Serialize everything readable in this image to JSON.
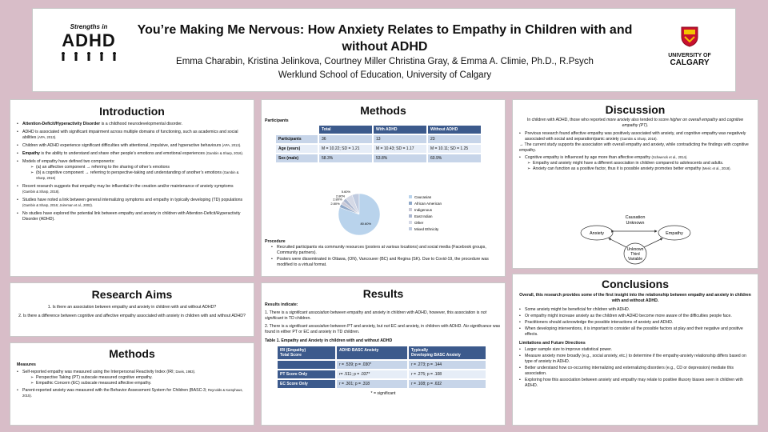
{
  "header": {
    "title": "You’re Making Me Nervous: How Anxiety Relates to Empathy in Children with and without ADHD",
    "authors": "Emma Charabin, Kristina Jelinkova, Courtney Miller Christina Gray, & Emma A. Climie, Ph.D., R.Psych",
    "affiliation": "Werklund School of Education, University of Calgary",
    "logo_left_top": "Strengths in",
    "logo_left_main": "ADHD",
    "logo_right_line1": "UNIVERSITY OF",
    "logo_right_line2": "CALGARY"
  },
  "introduction": {
    "title": "Introduction",
    "items": [
      {
        "bold": "Attention-Deficit/Hyperactivity Disorder",
        "text": " is a childhood neurodevelopmental disorder."
      },
      {
        "bold": "",
        "text": "ADHD is associated with significant impairment across multiple domains of functioning, such as academics and social abilities ",
        "cite": "(APA, 2013)."
      },
      {
        "bold": "",
        "text": "Children with ADHD experience significant difficulties with attentional, impulsive, and hyperactive behaviours ",
        "cite": "(APA, 2013)."
      },
      {
        "bold": "Empathy",
        "text": " is the ability to understand and share other people’s emotions and emotional experiences ",
        "cite": "(Gambin & Sharp, 2016)."
      },
      {
        "bold": "",
        "text": "Models of empathy have defined two components:"
      }
    ],
    "sub_items": [
      "(a) an affective component → referring to the sharing of other’s emotions",
      "(b) a cognitive component → referring to perspective-taking and understanding of another’s emotions "
    ],
    "sub_cite": "(Gambin & Sharp, 2016)",
    "items2": [
      {
        "text": "Recent research suggests that empathy may be influential in the creation and/or maintenance of anxiety symptoms ",
        "cite": "(Gambin & Sharp, 2018)."
      },
      {
        "text": "Studies have noted a link between general internalizing symptoms and empathy in typically developing (TD) populations ",
        "cite": "(Gambin & Sharp, 2016; Joireman et al., 2002)."
      },
      {
        "text": "No studies have explored the potential link between empathy and anxiety in children with Attention-Deficit/Hyperactivity Disorder (ADHD).",
        "cite": ""
      }
    ]
  },
  "aims": {
    "title": "Research Aims",
    "items": [
      "1. Is there an association between empathy and anxiety in children with and without ADHD?",
      "2. Is there a difference between cognitive and affective empathy associated with anxiety in children with and without ADHD?"
    ]
  },
  "methods_left": {
    "title": "Methods",
    "measures_label": "Measures",
    "item1": "Self-reported empathy was measured using the Interpersonal Reactivity Index (IRI; ",
    "item1_cite": "Davis, 1983).",
    "sub": [
      "Perspective Taking (PT) subscale measured cognitive empathy.",
      "Empathic Concern (EC) subscale measured affective empathy."
    ],
    "item2": "Parent-reported anxiety was measured with the Behavior Assessment System for Children (BASC-3; ",
    "item2_cite": "Reynolds & Kamphaus, 2015)."
  },
  "methods_mid": {
    "title": "Methods",
    "participants_label": "Participants",
    "table": {
      "headers": [
        "",
        "Total",
        "With ADHD",
        "Without ADHD"
      ],
      "rows": [
        [
          "Participants",
          "36",
          "13",
          "23"
        ],
        [
          "Age (years)",
          "M = 10.22; SD = 1.21",
          "M = 10.43; SD = 1.17",
          "M = 10.11; SD = 1.25"
        ],
        [
          "Sex (male)",
          "58.3%",
          "53.8%",
          "60.9%"
        ]
      ]
    },
    "pie": {
      "labels": [
        "Caucasian",
        "African American",
        "Indigenous",
        "East Indian",
        "Other",
        "Mixed Ethnicity"
      ],
      "values": [
        80.6,
        2.8,
        2.8,
        2.8,
        5.6,
        5.6
      ],
      "value_labels": [
        "80.60%",
        "2.80%",
        "2.80%",
        "2.80%",
        "5.60%",
        "5.60%"
      ],
      "colors": [
        "#b9d3ec",
        "#8fa8c8",
        "#c9c9d6",
        "#aab6cf",
        "#d5d9e6",
        "#c0cbe0"
      ]
    },
    "procedure_label": "Procedure",
    "procedure": [
      "Recruited participants via community resources (posters at various locations) and social media (Facebook groups, Community partners).",
      "Posters were disseminated in Ottawa, (ON), Vancouver (BC) and Regina (SK). Due to Covid-19, the procedure was modified to a virtual format."
    ]
  },
  "results": {
    "title": "Results",
    "indicate": "Results indicate:",
    "p1_a": "1. There is a ",
    "p1_em": "significant association",
    "p1_b": " between empathy and anxiety in children with ADHD, however, this association is ",
    "p1_em2": "not significant",
    "p1_c": " in TD children.",
    "p2_a": "2. There is a ",
    "p2_em": "significant association",
    "p2_b": " between PT and anxiety, but ",
    "p2_em2": "not",
    "p2_c": " EC and anxiety, in children with ADHD. ",
    "p2_em3": "No significance",
    "p2_d": " was found in either PT or EC and anxiety in TD children.",
    "table_title": "Table 1. Empathy and Anxiety in children with and without ADHD",
    "table": {
      "headers": [
        "IRI (Empathy) Total Score",
        "ADHD BASC Anxiety",
        "Typically Developing BASC Anxiety"
      ],
      "header0_line1": "IRI (Empathy)",
      "header0_line2": "Total Score",
      "header2_line1": "Typically",
      "header2_line2": "Developing BASC Anxiety",
      "rows": [
        [
          "",
          "r = .539; p = .030*",
          "r = .273; p = .144"
        ],
        [
          "PT Score Only",
          "r= .511; p = .037*",
          "r = .275; p = .108"
        ],
        [
          "EC Score Only",
          "r = .301; p = .318",
          "r = .108; p = .632"
        ]
      ]
    },
    "note": "* = significant"
  },
  "discussion": {
    "title": "Discussion",
    "intro_a": "In children with ADHD, those who reported ",
    "intro_em": "more anxiety",
    "intro_b": " also tended to score ",
    "intro_em2": "higher on overall empathy",
    "intro_c": " and ",
    "intro_em3": "cognitive empathy (PT).",
    "items": [
      {
        "text": "Previous research found affective empathy was positively associated with anxiety, and cognitive empathy was negatively associated with social and separation/panic anxiety ",
        "cite": "(Gambin & Sharp, 2018)."
      }
    ],
    "arrow_item": "The current study supports the association with overall empathy and anxiety, while contradicting the findings with cognitive empathy.",
    "items2": [
      {
        "text": "Cognitive empathy is influenced by age more than affective empathy ",
        "cite": "(Schwenck et al., 2014)."
      }
    ],
    "sub": [
      {
        "text": "Empathy and anxiety might have a different association in children compared to adolescents and adults.",
        "cite": ""
      },
      {
        "text": "Anxiety can function as a positive factor, thus it is possible anxiety promotes better empathy ",
        "cite": "(Meric et al., 2018)."
      }
    ],
    "diagram": {
      "causation": "Causation",
      "unknown": "Unknown",
      "anxiety": "Anxiety",
      "empathy": "Empathy",
      "third1": "Unknown",
      "third2": "Third",
      "third3": "Variable"
    }
  },
  "conclusions": {
    "title": "Conclusions",
    "lead": "Overall, this research provides some of the first insight into the relationship between empathy and anxiety in children with and without ADHD.",
    "items": [
      "Some anxiety might be beneficial for children with ADHD.",
      "Or empathy might increase anxiety as the children with ADHD become more aware of the difficulties people face.",
      "Practitioners should acknowledge the possible interactions of anxiety and ADHD.",
      "When developing interventions, it is important to consider all the possible factors at play and their negative and positive effects."
    ],
    "limits_label": "Limitations and Future Directions",
    "limits": [
      "Larger sample size to improve statistical power.",
      "Measure anxiety more broadly (e.g., social anxiety, etc.) to determine if the empathy-anxiety relationship differs based on type of anxiety in ADHD.",
      "Better understand how co-occurring internalizing and externalizing disorders (e.g., CD or depression) mediate this association.",
      "Exploring how this association between anxiety and empathy may relate to positive illusory biases seen in children with ADHD."
    ]
  }
}
